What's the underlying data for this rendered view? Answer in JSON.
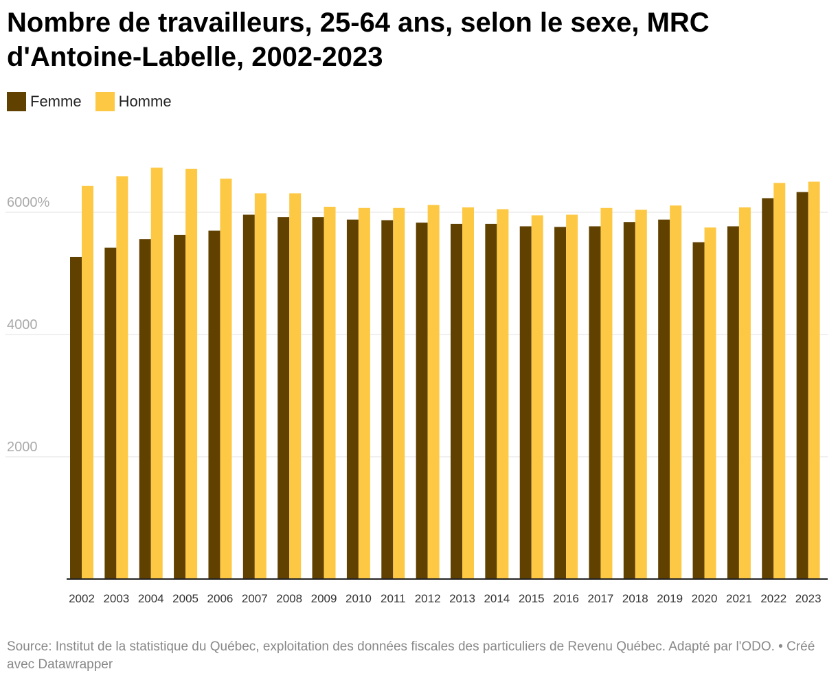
{
  "chart_data": {
    "type": "bar",
    "title": "Nombre de travailleurs, 25-64 ans, selon le sexe, MRC d'Antoine-Labelle, 2002-2023",
    "categories": [
      "2002",
      "2003",
      "2004",
      "2005",
      "2006",
      "2007",
      "2008",
      "2009",
      "2010",
      "2011",
      "2012",
      "2013",
      "2014",
      "2015",
      "2016",
      "2017",
      "2018",
      "2019",
      "2020",
      "2021",
      "2022",
      "2023"
    ],
    "series": [
      {
        "name": "Femme",
        "color": "#614100",
        "values": [
          5270,
          5420,
          5560,
          5630,
          5700,
          5960,
          5920,
          5920,
          5880,
          5870,
          5830,
          5810,
          5810,
          5770,
          5760,
          5770,
          5840,
          5880,
          5510,
          5770,
          6230,
          6330
        ]
      },
      {
        "name": "Homme",
        "color": "#fdc945",
        "values": [
          6430,
          6590,
          6730,
          6710,
          6550,
          6310,
          6310,
          6090,
          6070,
          6070,
          6120,
          6080,
          6050,
          5950,
          5960,
          6070,
          6040,
          6110,
          5750,
          6080,
          6480,
          6500
        ]
      }
    ],
    "yticks": [
      {
        "value": 2000,
        "label": "2000"
      },
      {
        "value": 4000,
        "label": "4000"
      },
      {
        "value": 6000,
        "label": "6000%"
      }
    ],
    "ylim": [
      0,
      7000
    ],
    "xlabel": "",
    "ylabel": "",
    "grid": true,
    "legend_position": "top-left",
    "source": "Source: Institut de la statistique du Québec, exploitation des données fiscales des particuliers de Revenu Québec. Adapté par l'ODO. • Créé avec Datawrapper"
  }
}
